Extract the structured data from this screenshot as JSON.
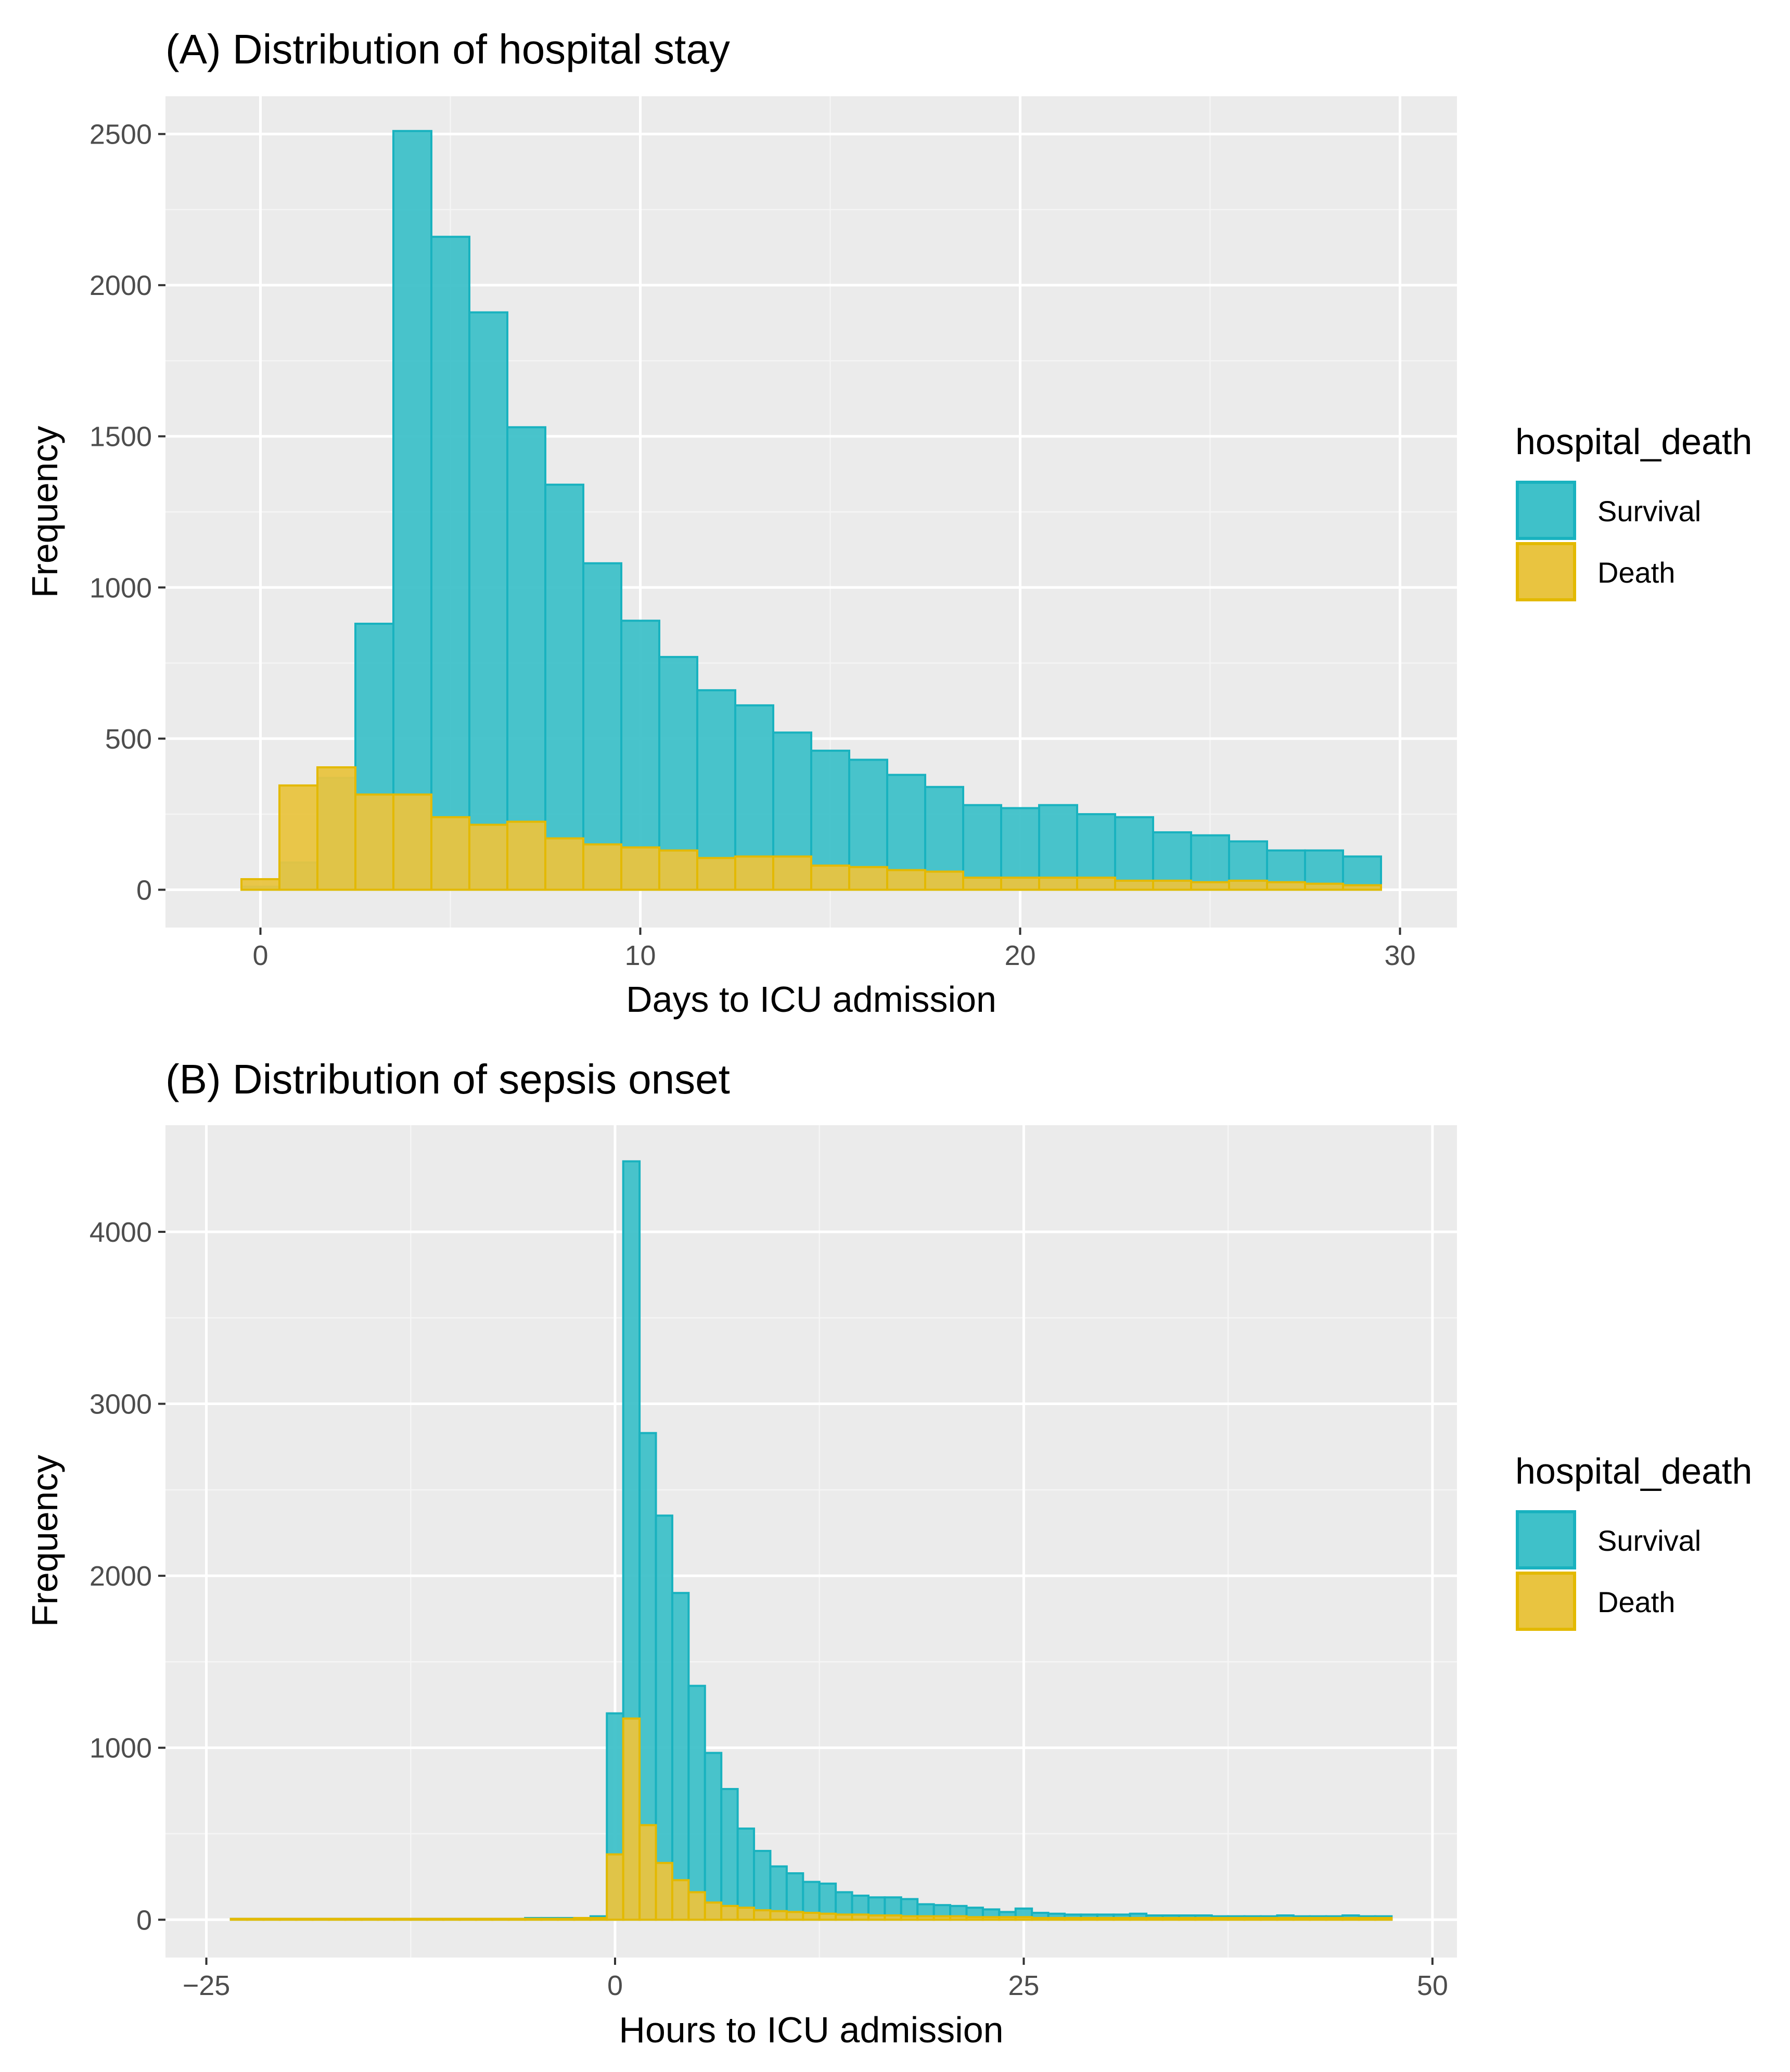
{
  "colors": {
    "panel_bg": "#ebebeb",
    "grid_major": "#ffffff",
    "grid_minor": "#f5f5f5",
    "tick": "#333333",
    "survival_fill": "#3fc1c9",
    "survival_stroke": "#19b2bf",
    "death_fill": "#e9c440",
    "death_stroke": "#e3b900"
  },
  "chart_data": [
    {
      "type": "bar",
      "subtype": "overlaid-histogram",
      "title": "(A) Distribution of hospital stay",
      "xlabel": "Days to ICU admission",
      "ylabel": "Frequency",
      "xlim": [
        -2.5,
        31.5
      ],
      "ylim": [
        -125,
        2625
      ],
      "x_ticks": [
        0,
        10,
        20,
        30
      ],
      "y_ticks": [
        0,
        500,
        1000,
        1500,
        2000,
        2500
      ],
      "grid": true,
      "bin_width": 1,
      "x": [
        0,
        1,
        2,
        3,
        4,
        5,
        6,
        7,
        8,
        9,
        10,
        11,
        12,
        13,
        14,
        15,
        16,
        17,
        18,
        19,
        20,
        21,
        22,
        23,
        24,
        25,
        26,
        27,
        28,
        29
      ],
      "legend": {
        "title": "hospital_death",
        "position": "right",
        "entries": [
          "Survival",
          "Death"
        ]
      },
      "series": [
        {
          "name": "Survival",
          "values": [
            10,
            90,
            370,
            880,
            2510,
            2160,
            1910,
            1530,
            1340,
            1080,
            890,
            770,
            660,
            610,
            520,
            460,
            430,
            380,
            340,
            280,
            270,
            280,
            250,
            240,
            190,
            180,
            160,
            130,
            130,
            110
          ]
        },
        {
          "name": "Death",
          "values": [
            35,
            345,
            405,
            315,
            315,
            240,
            215,
            225,
            170,
            150,
            140,
            130,
            105,
            110,
            110,
            80,
            75,
            65,
            60,
            40,
            40,
            40,
            40,
            30,
            30,
            25,
            30,
            25,
            20,
            15
          ]
        }
      ]
    },
    {
      "type": "bar",
      "subtype": "overlaid-histogram",
      "title": "(B) Distribution of sepsis onset",
      "xlabel": "Hours to ICU admission",
      "ylabel": "Frequency",
      "xlim": [
        -27.5,
        51.5
      ],
      "ylim": [
        -220,
        4620
      ],
      "x_ticks": [
        -25,
        0,
        25,
        50
      ],
      "y_ticks": [
        0,
        1000,
        2000,
        3000,
        4000
      ],
      "grid": true,
      "bin_width": 1,
      "x": [
        -23,
        -22,
        -21,
        -20,
        -19,
        -18,
        -17,
        -16,
        -15,
        -14,
        -13,
        -12,
        -11,
        -10,
        -9,
        -8,
        -7,
        -6,
        -5,
        -4,
        -3,
        -2,
        -1,
        0,
        1,
        2,
        3,
        4,
        5,
        6,
        7,
        8,
        9,
        10,
        11,
        12,
        13,
        14,
        15,
        16,
        17,
        18,
        19,
        20,
        21,
        22,
        23,
        24,
        25,
        26,
        27,
        28,
        29,
        30,
        31,
        32,
        33,
        34,
        35,
        36,
        37,
        38,
        39,
        40,
        41,
        42,
        43,
        44,
        45,
        46,
        47
      ],
      "legend": {
        "title": "hospital_death",
        "position": "right",
        "entries": [
          "Survival",
          "Death"
        ]
      },
      "series": [
        {
          "name": "Survival",
          "values": [
            5,
            5,
            5,
            5,
            5,
            5,
            5,
            5,
            5,
            5,
            5,
            5,
            5,
            5,
            5,
            5,
            5,
            5,
            10,
            10,
            10,
            10,
            20,
            1200,
            4410,
            2830,
            2350,
            1900,
            1360,
            970,
            760,
            530,
            400,
            310,
            270,
            220,
            210,
            160,
            140,
            130,
            130,
            120,
            90,
            85,
            80,
            70,
            60,
            45,
            65,
            40,
            35,
            30,
            30,
            30,
            30,
            35,
            25,
            25,
            25,
            25,
            20,
            20,
            20,
            20,
            25,
            20,
            20,
            20,
            25,
            20,
            20
          ]
        },
        {
          "name": "Death",
          "values": [
            5,
            5,
            5,
            5,
            5,
            5,
            5,
            5,
            5,
            5,
            5,
            5,
            5,
            5,
            5,
            5,
            5,
            5,
            5,
            5,
            5,
            10,
            10,
            380,
            1170,
            550,
            330,
            230,
            160,
            100,
            80,
            70,
            55,
            50,
            45,
            40,
            35,
            30,
            30,
            25,
            25,
            20,
            20,
            20,
            20,
            15,
            15,
            15,
            15,
            10,
            10,
            10,
            10,
            10,
            10,
            10,
            10,
            10,
            10,
            10,
            10,
            10,
            10,
            10,
            10,
            10,
            10,
            10,
            10,
            10,
            10
          ]
        }
      ]
    }
  ]
}
